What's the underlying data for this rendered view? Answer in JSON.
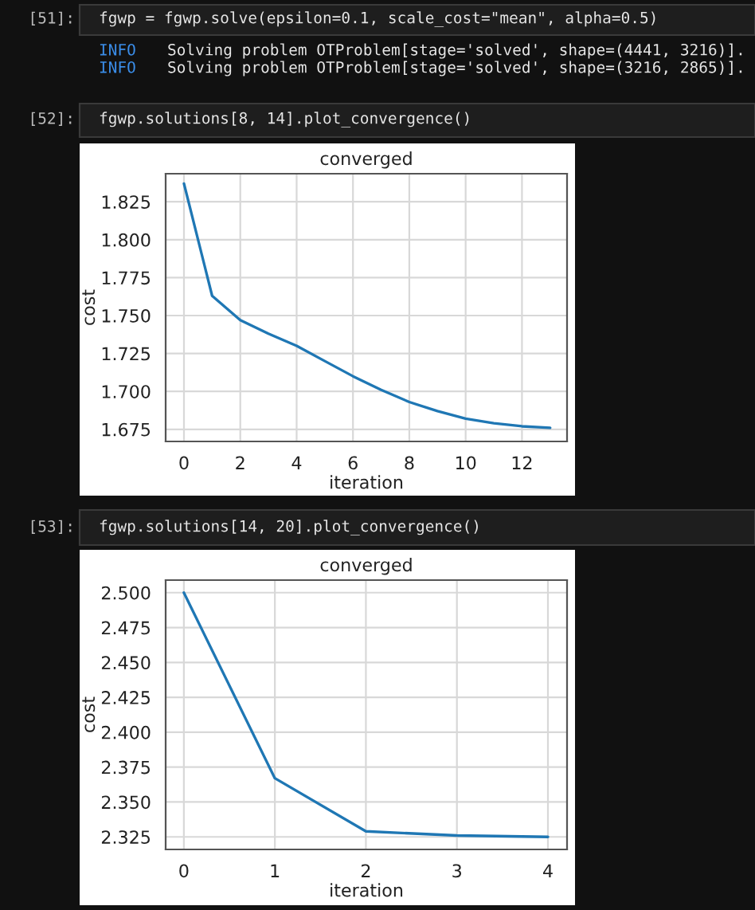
{
  "chart_data": [
    {
      "type": "line",
      "title": "converged",
      "xlabel": "iteration",
      "ylabel": "cost",
      "x": [
        0,
        1,
        2,
        3,
        4,
        5,
        6,
        7,
        8,
        9,
        10,
        11,
        12,
        13
      ],
      "series": [
        {
          "color": "#1f77b4",
          "values": [
            1.837,
            1.763,
            1.747,
            1.738,
            1.73,
            1.72,
            1.71,
            1.701,
            1.693,
            1.687,
            1.682,
            1.679,
            1.677,
            1.676
          ]
        }
      ],
      "xlim": [
        -0.65,
        13.6
      ],
      "ylim": [
        1.667,
        1.8435
      ],
      "xticks": [
        0,
        2,
        4,
        6,
        8,
        10,
        12
      ],
      "yticks": [
        1.675,
        {
          "value": 1.7,
          "label": "1.700"
        },
        {
          "value": 1.725,
          "label": "1.725"
        },
        {
          "value": 1.75,
          "label": "1.750"
        },
        1.775,
        {
          "value": 1.8,
          "label": "1.800"
        },
        1.825
      ],
      "grid": true,
      "marker": "none",
      "line_style": "solid",
      "annotations": [
        "[51]:",
        "fgwp = fgwp.solve(epsilon=0.1, scale_cost=\"mean\", alpha=0.5)",
        "INFO",
        "Solving problem OTProblem[stage='solved', shape=(4441, 3216)].",
        "INFO",
        "Solving problem OTProblem[stage='solved', shape=(3216, 2865)].",
        "[52]:",
        "fgwp.solutions[8, 14].plot_convergence()"
      ]
    },
    {
      "type": "line",
      "title": "converged",
      "xlabel": "iteration",
      "ylabel": "cost",
      "x": [
        0,
        1,
        2,
        3,
        4
      ],
      "series": [
        {
          "color": "#1f77b4",
          "values": [
            2.5,
            2.367,
            2.329,
            2.326,
            2.325
          ]
        }
      ],
      "xlim": [
        -0.2,
        4.21
      ],
      "ylim": [
        2.316,
        2.509
      ],
      "xticks": [
        0,
        1,
        2,
        3,
        4
      ],
      "yticks": [
        {
          "value": 2.325,
          "label": "2.325"
        },
        {
          "value": 2.35,
          "label": "2.350"
        },
        2.375,
        {
          "value": 2.4,
          "label": "2.400"
        },
        2.425,
        {
          "value": 2.45,
          "label": "2.450"
        },
        2.475,
        {
          "value": 2.5,
          "label": "2.500"
        }
      ],
      "grid": true,
      "marker": "none",
      "line_style": "solid",
      "annotations": [
        "[53]:",
        "fgwp.solutions[14, 20].plot_convergence()"
      ]
    }
  ]
}
